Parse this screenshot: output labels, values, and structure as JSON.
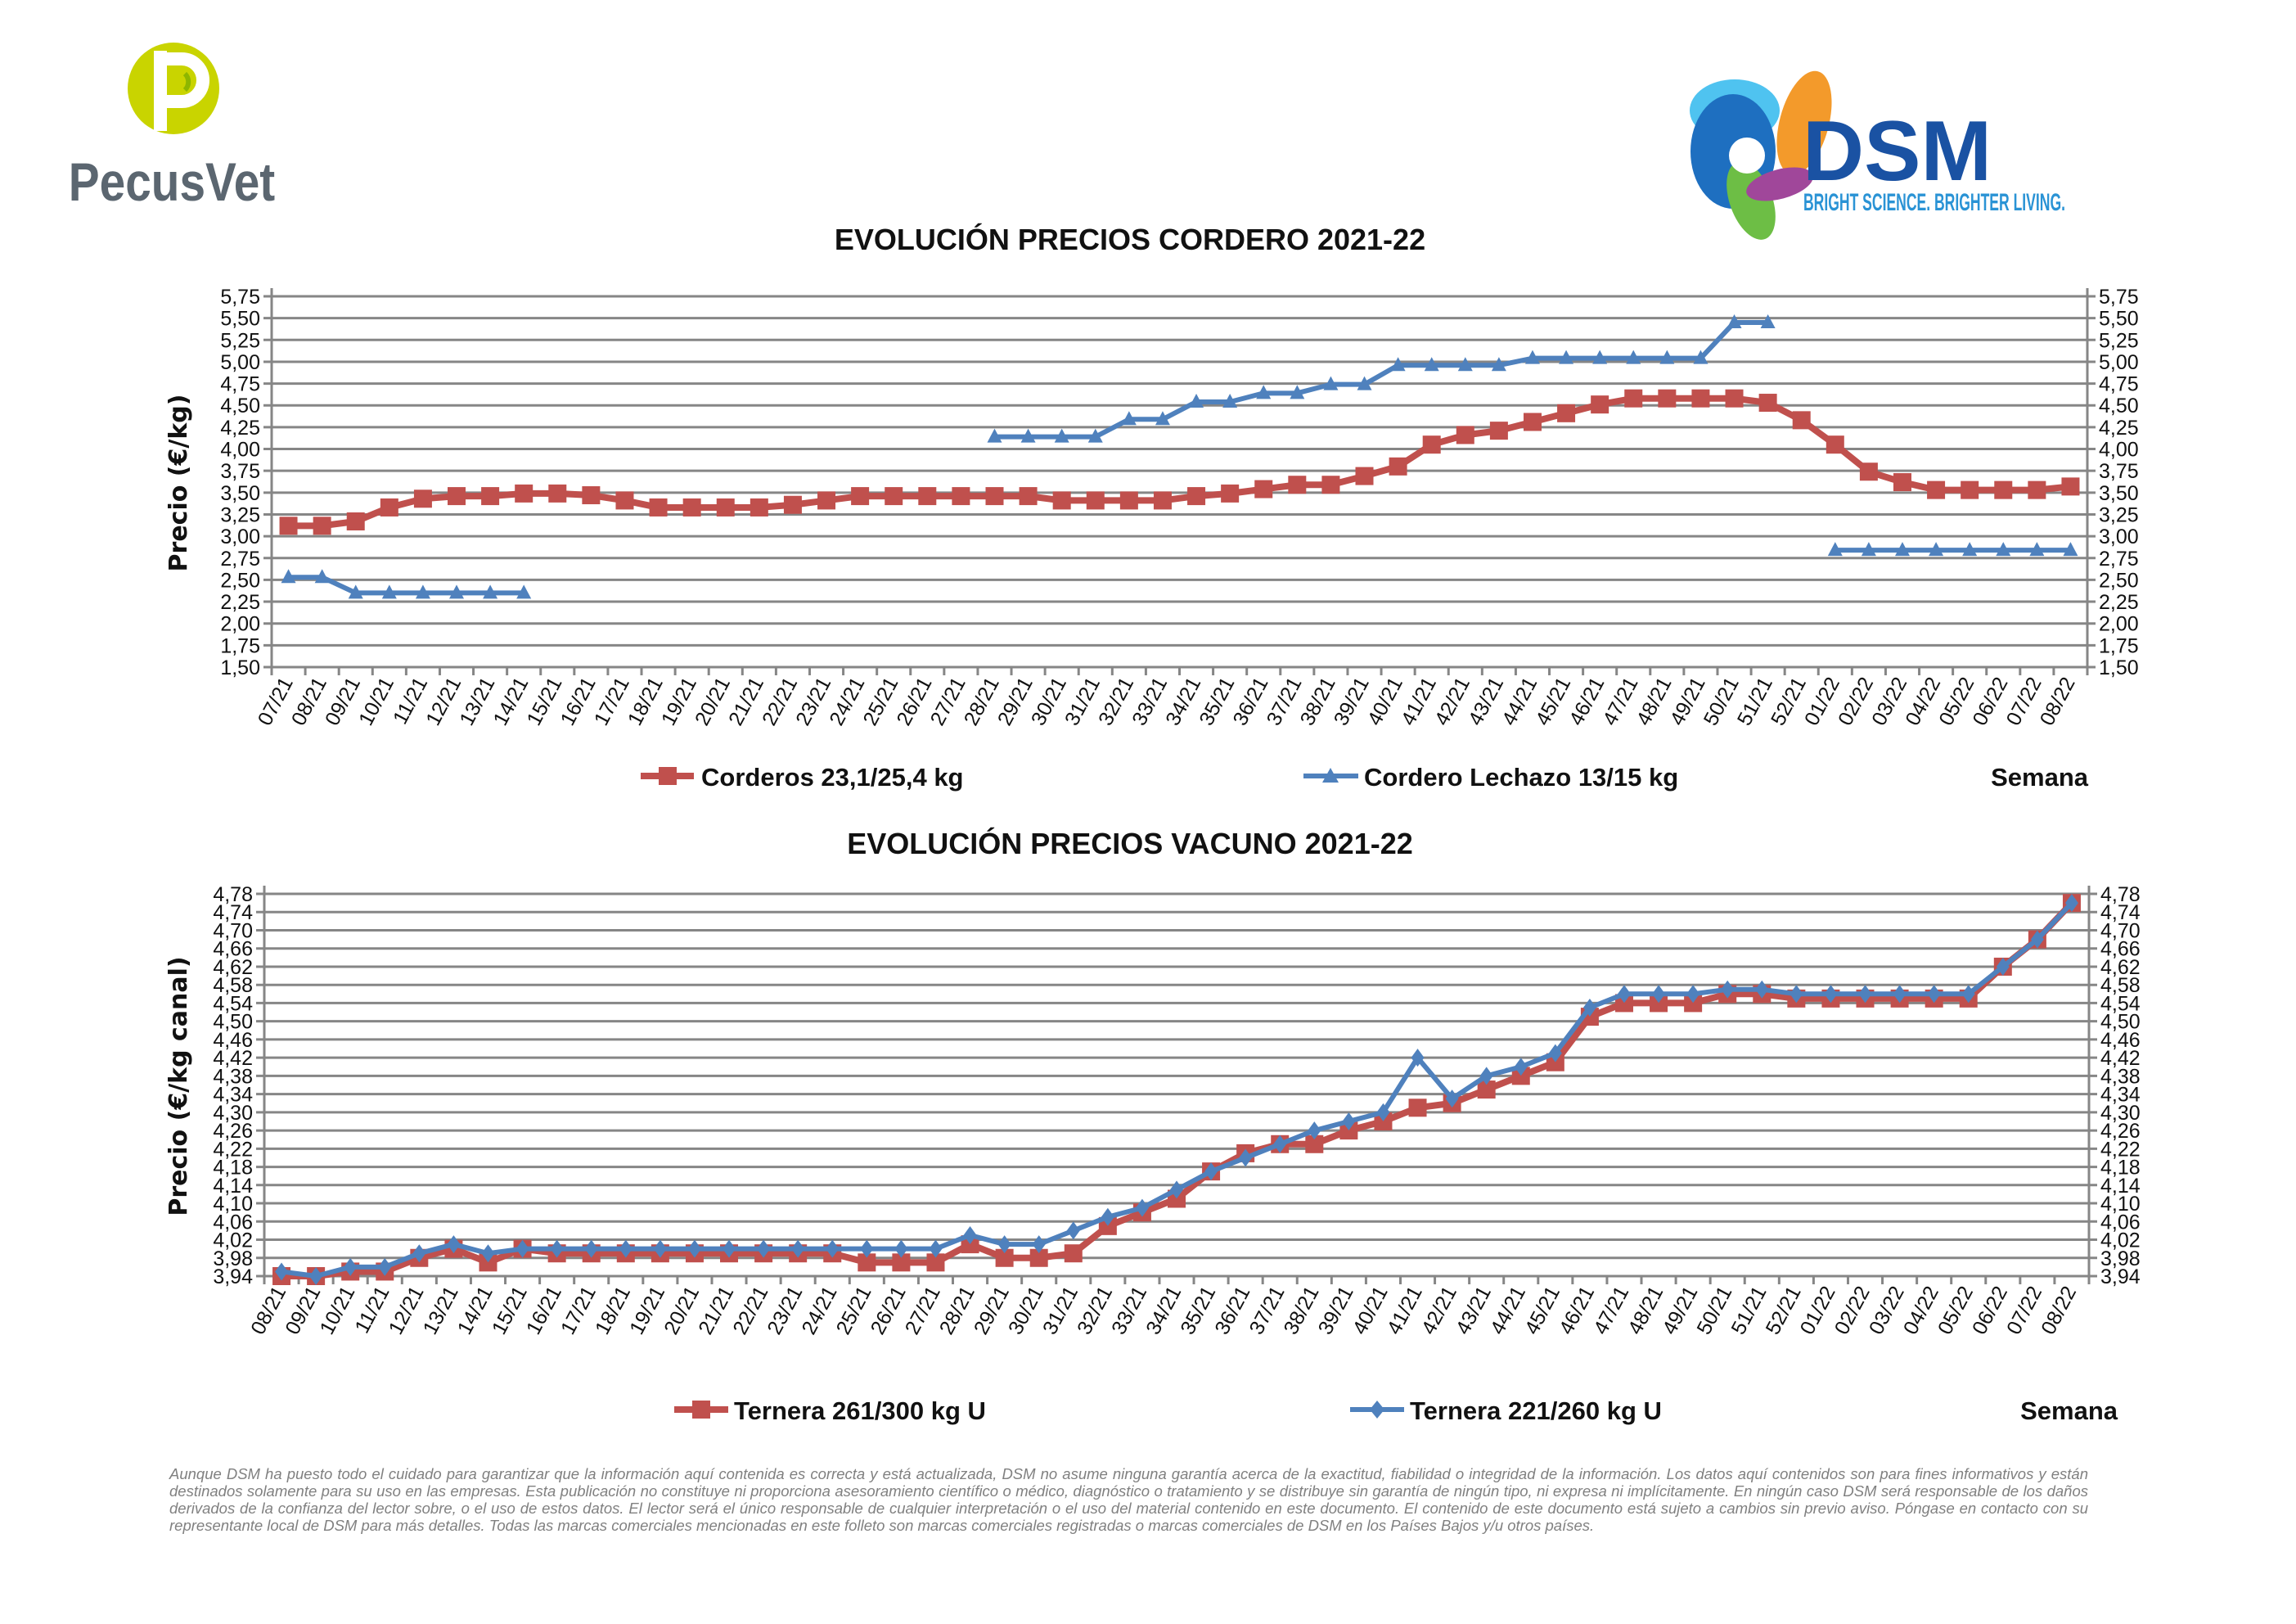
{
  "logos": {
    "left": {
      "text": "PecusVet"
    },
    "right": {
      "text": "DSM",
      "tagline": "BRIGHT SCIENCE. BRIGHTER LIVING."
    }
  },
  "colors": {
    "red": "#C0504D",
    "blue": "#4F81BD",
    "grid": "#868686"
  },
  "chart_data": [
    {
      "type": "line",
      "title": "EVOLUCIÓN PRECIOS CORDERO 2021-22",
      "ylabel": "Precio (€/kg)",
      "xlabel": "Semana",
      "ylim": [
        1.5,
        5.75
      ],
      "ystep": 0.25,
      "grid": true,
      "legend": "bottom",
      "categories": [
        "07/21",
        "08/21",
        "09/21",
        "10/21",
        "11/21",
        "12/21",
        "13/21",
        "14/21",
        "15/21",
        "16/21",
        "17/21",
        "18/21",
        "19/21",
        "20/21",
        "21/21",
        "22/21",
        "23/21",
        "24/21",
        "25/21",
        "26/21",
        "27/21",
        "28/21",
        "29/21",
        "30/21",
        "31/21",
        "32/21",
        "33/21",
        "34/21",
        "35/21",
        "36/21",
        "37/21",
        "38/21",
        "39/21",
        "40/21",
        "41/21",
        "42/21",
        "43/21",
        "44/21",
        "45/21",
        "46/21",
        "47/21",
        "48/21",
        "49/21",
        "50/21",
        "51/21",
        "52/21",
        "01/22",
        "02/22",
        "03/22",
        "04/22",
        "05/22",
        "06/22",
        "07/22",
        "08/22"
      ],
      "series": [
        {
          "name": "Corderos 23,1/25,4 kg",
          "color": "#C0504D",
          "marker": "square",
          "values": [
            3.12,
            3.12,
            3.17,
            3.33,
            3.43,
            3.46,
            3.46,
            3.49,
            3.49,
            3.47,
            3.41,
            3.33,
            3.33,
            3.33,
            3.33,
            3.36,
            3.41,
            3.46,
            3.46,
            3.46,
            3.46,
            3.46,
            3.46,
            3.41,
            3.41,
            3.41,
            3.41,
            3.46,
            3.49,
            3.54,
            3.59,
            3.59,
            3.69,
            3.8,
            4.05,
            4.16,
            4.21,
            4.31,
            4.41,
            4.51,
            4.58,
            4.58,
            4.58,
            4.58,
            4.53,
            4.33,
            4.05,
            3.74,
            3.62,
            3.53,
            3.53,
            3.53,
            3.53,
            3.57
          ]
        },
        {
          "name": "Cordero Lechazo 13/15 kg",
          "color": "#4F81BD",
          "marker": "triangle",
          "values": [
            2.53,
            2.53,
            2.35,
            2.35,
            2.35,
            2.35,
            2.35,
            2.35,
            null,
            null,
            null,
            null,
            null,
            null,
            null,
            null,
            null,
            null,
            null,
            null,
            null,
            4.14,
            4.14,
            4.14,
            4.14,
            4.34,
            4.34,
            4.54,
            4.54,
            4.64,
            4.64,
            4.74,
            4.74,
            4.96,
            4.96,
            4.96,
            4.96,
            5.04,
            5.04,
            5.04,
            5.04,
            5.04,
            5.04,
            5.45,
            5.45,
            null,
            2.84,
            2.84,
            2.84,
            2.84,
            2.84,
            2.84,
            2.84,
            2.84
          ]
        }
      ]
    },
    {
      "type": "line",
      "title": "EVOLUCIÓN PRECIOS VACUNO 2021-22",
      "ylabel": "Precio (€/kg canal)",
      "xlabel": "Semana",
      "ylim": [
        3.94,
        4.78
      ],
      "ystep": 0.04,
      "grid": true,
      "legend": "bottom",
      "categories": [
        "08/21",
        "09/21",
        "10/21",
        "11/21",
        "12/21",
        "13/21",
        "14/21",
        "15/21",
        "16/21",
        "17/21",
        "18/21",
        "19/21",
        "20/21",
        "21/21",
        "22/21",
        "23/21",
        "24/21",
        "25/21",
        "26/21",
        "27/21",
        "28/21",
        "29/21",
        "30/21",
        "31/21",
        "32/21",
        "33/21",
        "34/21",
        "35/21",
        "36/21",
        "37/21",
        "38/21",
        "39/21",
        "40/21",
        "41/21",
        "42/21",
        "43/21",
        "44/21",
        "45/21",
        "46/21",
        "47/21",
        "48/21",
        "49/21",
        "50/21",
        "51/21",
        "52/21",
        "01/22",
        "02/22",
        "03/22",
        "04/22",
        "05/22",
        "06/22",
        "07/22",
        "08/22"
      ],
      "series": [
        {
          "name": "Ternera 261/300 kg U",
          "color": "#C0504D",
          "marker": "square",
          "values": [
            3.94,
            3.94,
            3.95,
            3.95,
            3.98,
            4.0,
            3.97,
            4.0,
            3.99,
            3.99,
            3.99,
            3.99,
            3.99,
            3.99,
            3.99,
            3.99,
            3.99,
            3.97,
            3.97,
            3.97,
            4.01,
            3.98,
            3.98,
            3.99,
            4.05,
            4.08,
            4.11,
            4.17,
            4.21,
            4.23,
            4.23,
            4.26,
            4.28,
            4.31,
            4.32,
            4.35,
            4.38,
            4.41,
            4.51,
            4.54,
            4.54,
            4.54,
            4.56,
            4.56,
            4.55,
            4.55,
            4.55,
            4.55,
            4.55,
            4.55,
            4.62,
            4.68,
            4.76
          ]
        },
        {
          "name": "Ternera 221/260 kg U",
          "color": "#4F81BD",
          "marker": "diamond",
          "values": [
            3.95,
            3.94,
            3.96,
            3.96,
            3.99,
            4.01,
            3.99,
            4.0,
            4.0,
            4.0,
            4.0,
            4.0,
            4.0,
            4.0,
            4.0,
            4.0,
            4.0,
            4.0,
            4.0,
            4.0,
            4.03,
            4.01,
            4.01,
            4.04,
            4.07,
            4.09,
            4.13,
            4.17,
            4.2,
            4.23,
            4.26,
            4.28,
            4.3,
            4.42,
            4.33,
            4.38,
            4.4,
            4.43,
            4.53,
            4.56,
            4.56,
            4.56,
            4.57,
            4.57,
            4.56,
            4.56,
            4.56,
            4.56,
            4.56,
            4.56,
            4.62,
            4.68,
            4.76
          ]
        }
      ]
    }
  ],
  "disclaimer": "Aunque DSM ha puesto todo el cuidado para garantizar que la información aquí contenida es correcta y está actualizada, DSM no asume ninguna garantía acerca de la exactitud, fiabilidad o integridad de la información. Los datos aquí contenidos son para fines informativos y están destinados solamente para su uso en las empresas. Esta publicación no constituye ni proporciona asesoramiento científico o médico, diagnóstico o tratamiento y se distribuye sin garantía de ningún tipo, ni expresa ni implícitamente. En ningún caso DSM será responsable de los daños derivados de la confianza del lector sobre, o el uso de estos datos. El lector será el único responsable de cualquier interpretación o el uso del material contenido en este documento. El contenido de este documento está sujeto a cambios sin previo aviso. Póngase en contacto con su representante local de DSM para más detalles. Todas las marcas comerciales mencionadas en este folleto son marcas comerciales registradas o marcas comerciales de DSM en los Países Bajos y/u otros países."
}
